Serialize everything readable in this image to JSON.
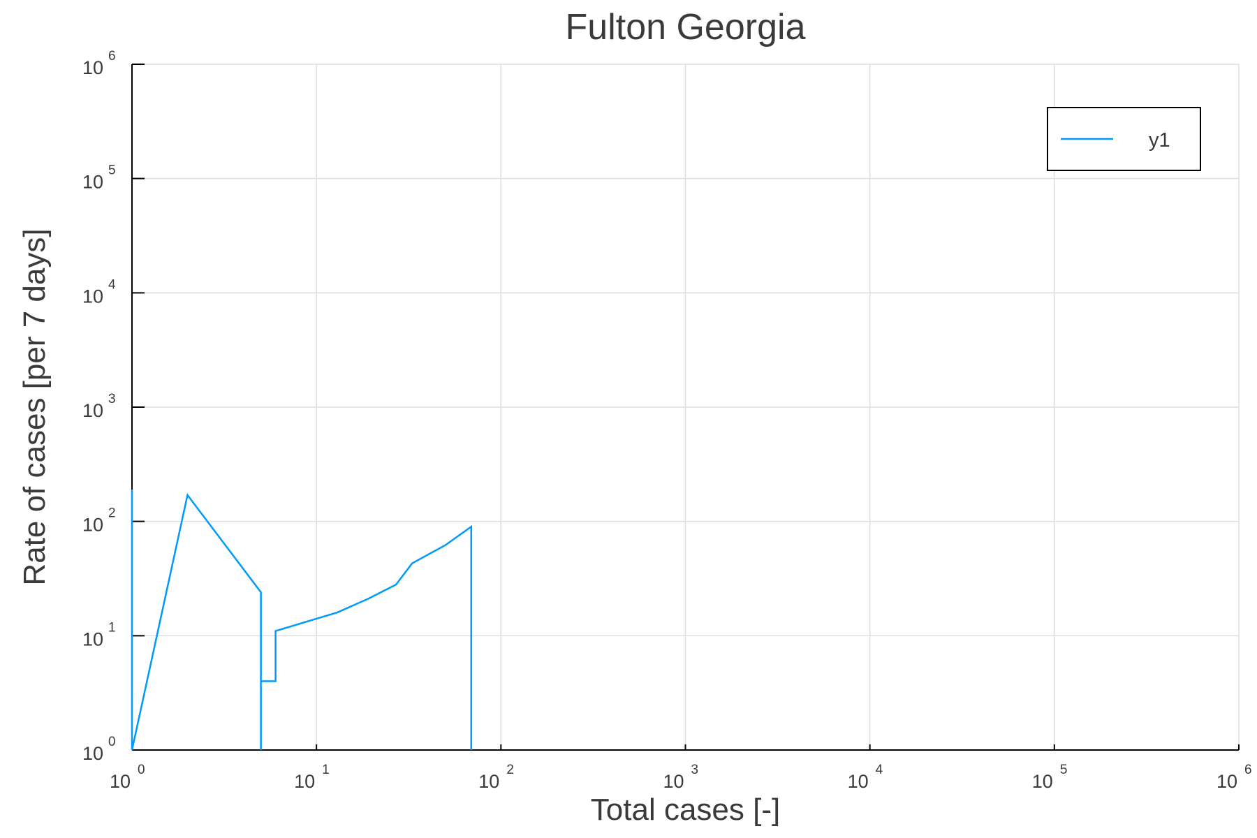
{
  "chart_data": {
    "type": "line",
    "title": "Fulton Georgia",
    "xlabel": "Total cases [-]",
    "ylabel": "Rate of cases [per 7 days]",
    "xscale": "log",
    "yscale": "log",
    "xlim": [
      1,
      1000000
    ],
    "ylim": [
      1,
      1000000
    ],
    "grid": true,
    "legend_position": "top-right",
    "x_ticks": [
      {
        "base": "10",
        "exp": "0"
      },
      {
        "base": "10",
        "exp": "1"
      },
      {
        "base": "10",
        "exp": "2"
      },
      {
        "base": "10",
        "exp": "3"
      },
      {
        "base": "10",
        "exp": "4"
      },
      {
        "base": "10",
        "exp": "5"
      },
      {
        "base": "10",
        "exp": "6"
      }
    ],
    "y_ticks": [
      {
        "base": "10",
        "exp": "0"
      },
      {
        "base": "10",
        "exp": "1"
      },
      {
        "base": "10",
        "exp": "2"
      },
      {
        "base": "10",
        "exp": "3"
      },
      {
        "base": "10",
        "exp": "4"
      },
      {
        "base": "10",
        "exp": "5"
      },
      {
        "base": "10",
        "exp": "6"
      }
    ],
    "series": [
      {
        "name": "y1",
        "color": "#009af9",
        "points": [
          [
            1,
            190
          ],
          [
            1,
            1
          ],
          [
            2,
            170
          ],
          [
            5,
            24
          ],
          [
            5,
            1
          ],
          [
            5,
            4
          ],
          [
            6,
            4
          ],
          [
            6,
            11
          ],
          [
            13,
            16
          ],
          [
            19,
            21
          ],
          [
            27,
            28
          ],
          [
            33,
            43
          ],
          [
            50,
            62
          ],
          [
            69,
            90
          ],
          [
            69,
            1
          ]
        ]
      }
    ]
  }
}
